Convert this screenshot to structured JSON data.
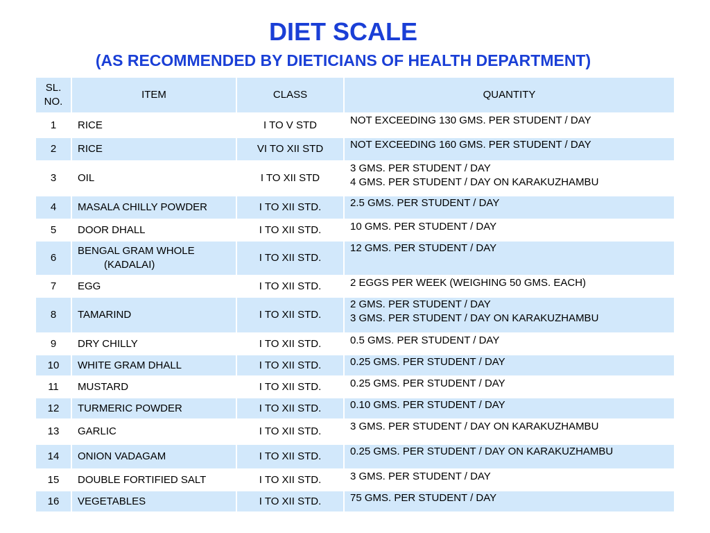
{
  "title": "DIET SCALE",
  "subtitle": "(AS RECOMMENDED BY DIETICIANS OF HEALTH DEPARTMENT)",
  "headers": {
    "sl_no_line1": "SL.",
    "sl_no_line2": "NO.",
    "item": "ITEM",
    "class": "CLASS",
    "quantity": "QUANTITY"
  },
  "rows": [
    {
      "no": "1",
      "item": "RICE",
      "class": "I TO V STD",
      "qty": [
        "NOT EXCEEDING 130 GMS. PER STUDENT / DAY"
      ]
    },
    {
      "no": "2",
      "item": "RICE",
      "class": "VI TO XII STD",
      "qty": [
        "NOT EXCEEDING 160 GMS. PER STUDENT / DAY"
      ]
    },
    {
      "no": "3",
      "item": "OIL",
      "class": "I TO XII STD",
      "qty": [
        "3 GMS. PER STUDENT / DAY",
        "4 GMS. PER STUDENT / DAY ON KARAKUZHAMBU"
      ]
    },
    {
      "no": "4",
      "item": "MASALA CHILLY POWDER",
      "class": "I TO XII STD.",
      "qty": [
        "2.5 GMS. PER STUDENT / DAY"
      ]
    },
    {
      "no": "5",
      "item": "DOOR DHALL",
      "class": "I TO XII STD.",
      "qty": [
        "10 GMS. PER STUDENT / DAY"
      ]
    },
    {
      "no": "6",
      "item": [
        "BENGAL GRAM WHOLE",
        "(KADALAI)"
      ],
      "class": "I TO XII STD.",
      "qty": [
        "12 GMS. PER STUDENT / DAY"
      ]
    },
    {
      "no": "7",
      "item": "EGG",
      "class": "I TO XII STD.",
      "qty": [
        "2 EGGS PER WEEK (WEIGHING 50 GMS. EACH)"
      ]
    },
    {
      "no": "8",
      "item": "TAMARIND",
      "class": "I TO XII STD.",
      "qty": [
        "2 GMS. PER STUDENT / DAY",
        "3 GMS. PER STUDENT / DAY ON KARAKUZHAMBU"
      ]
    },
    {
      "no": "9",
      "item": "DRY CHILLY",
      "class": "I TO XII STD.",
      "qty": [
        "0.5 GMS. PER STUDENT / DAY"
      ]
    },
    {
      "no": "10",
      "item": "WHITE GRAM DHALL",
      "class": "I TO XII STD.",
      "qty": [
        "0.25 GMS. PER STUDENT / DAY"
      ]
    },
    {
      "no": "11",
      "item": "MUSTARD",
      "class": "I TO XII STD.",
      "qty": [
        "0.25 GMS. PER STUDENT / DAY"
      ]
    },
    {
      "no": "12",
      "item": "TURMERIC POWDER",
      "class": "I TO XII STD.",
      "qty": [
        "0.10 GMS. PER STUDENT / DAY"
      ]
    },
    {
      "no": "13",
      "item": "GARLIC",
      "class": "I TO XII STD.",
      "qty": [
        "3 GMS. PER STUDENT / DAY ON KARAKUZHAMBU"
      ]
    },
    {
      "no": "14",
      "item": "ONION VADAGAM",
      "class": "I TO XII STD.",
      "qty": [
        "0.25 GMS. PER STUDENT / DAY ON KARAKUZHAMBU"
      ]
    },
    {
      "no": "15",
      "item": "DOUBLE FORTIFIED SALT",
      "class": "I TO XII STD.",
      "qty": [
        "3 GMS. PER STUDENT / DAY"
      ]
    },
    {
      "no": "16",
      "item": "VEGETABLES",
      "class": "I TO XII STD.",
      "qty": [
        "75 GMS. PER STUDENT / DAY"
      ]
    }
  ],
  "colors": {
    "title": "#1a3fd6",
    "band": "#d2e8fb",
    "white": "#ffffff"
  }
}
